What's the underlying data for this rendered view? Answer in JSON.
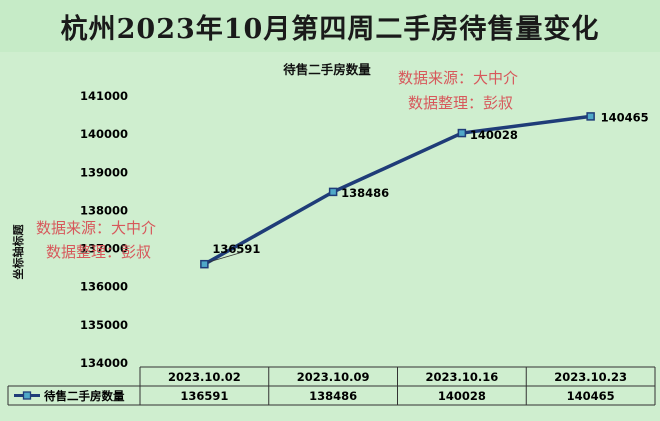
{
  "header": {
    "title": "杭州2023年10月第四周二手房待售量变化"
  },
  "watermarks": [
    {
      "line1": "数据来源：大中介",
      "line2": "数据整理：彭叔"
    },
    {
      "line1": "数据来源：大中介",
      "line2": "数据整理：彭叔"
    }
  ],
  "chart_data": {
    "type": "line",
    "title": "待售二手房数量",
    "xlabel": "",
    "ylabel": "坐标轴标题",
    "categories": [
      "2023.10.02",
      "2023.10.09",
      "2023.10.16",
      "2023.10.23"
    ],
    "series": [
      {
        "name": "待售二手房数量",
        "values": [
          136591,
          138486,
          140028,
          140465
        ],
        "color": "#1f3c78"
      }
    ],
    "ylim": [
      134000,
      141000
    ],
    "yticks": [
      "134000",
      "135000",
      "136000",
      "137000",
      "138000",
      "139000",
      "140000",
      "141000"
    ],
    "data_labels": [
      "136591",
      "138486",
      "140028",
      "140465"
    ],
    "data_table": {
      "row_label": "待售二手房数量",
      "values": [
        "136591",
        "138486",
        "140028",
        "140465"
      ]
    },
    "grid": false,
    "legend": "data-table"
  },
  "colors": {
    "background": "#cfeecf",
    "line": "#1f3c78",
    "marker_fill": "#4fa8c8",
    "watermark": "#d7585b"
  }
}
